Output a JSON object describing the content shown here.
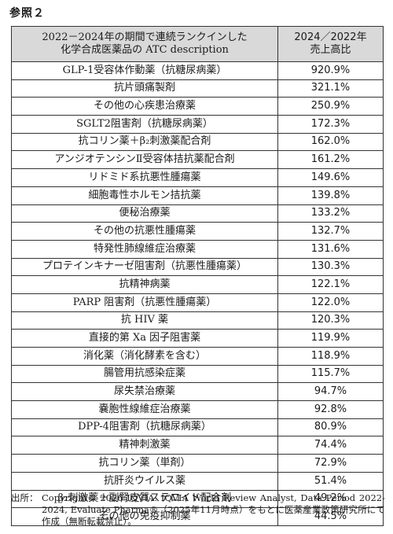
{
  "reference_label": "参照２",
  "table": {
    "header": {
      "description": "2022－2024年の期間で連続ランクインした\n化学合成医薬品の ATC description",
      "ratio": "2024／2022年\n売上高比"
    },
    "rows": [
      {
        "description": "GLP-1受容体作動薬（抗糖尿病薬）",
        "ratio": "920.9%"
      },
      {
        "description": "抗片頭痛製剤",
        "ratio": "321.1%"
      },
      {
        "description": "その他の心疾患治療薬",
        "ratio": "250.9%"
      },
      {
        "description": "SGLT2阻害剤（抗糖尿病薬）",
        "ratio": "172.3%"
      },
      {
        "description": "抗コリン薬＋β₂刺激薬配合剤",
        "ratio": "162.0%"
      },
      {
        "description": "アンジオテンシンⅡ受容体拮抗薬配合剤",
        "ratio": "161.2%"
      },
      {
        "description": "リドミド系抗悪性腫瘍薬",
        "ratio": "149.6%"
      },
      {
        "description": "細胞毒性ホルモン拮抗薬",
        "ratio": "139.8%"
      },
      {
        "description": "便秘治療薬",
        "ratio": "133.2%"
      },
      {
        "description": "その他の抗悪性腫瘍薬",
        "ratio": "132.7%"
      },
      {
        "description": "特発性肺線維症治療薬",
        "ratio": "131.6%"
      },
      {
        "description": "プロテインキナーゼ阻害剤（抗悪性腫瘍薬）",
        "ratio": "130.3%"
      },
      {
        "description": "抗精神病薬",
        "ratio": "122.1%"
      },
      {
        "description": "PARP 阻害剤（抗悪性腫瘍薬）",
        "ratio": "122.0%"
      },
      {
        "description": "抗 HIV 薬",
        "ratio": "120.3%"
      },
      {
        "description": "直接的第 Xa 因子阻害薬",
        "ratio": "119.9%"
      },
      {
        "description": "消化薬（消化酵素を含む）",
        "ratio": "118.9%"
      },
      {
        "description": "腸管用抗感染症薬",
        "ratio": "115.7%"
      },
      {
        "description": "尿失禁治療薬",
        "ratio": "94.7%"
      },
      {
        "description": "嚢胞性線維症治療薬",
        "ratio": "92.8%"
      },
      {
        "description": "DPP-4阻害剤（抗糖尿病薬）",
        "ratio": "80.9%"
      },
      {
        "description": "精神刺激薬",
        "ratio": "74.4%"
      },
      {
        "description": "抗コリン薬（単剤）",
        "ratio": "72.9%"
      },
      {
        "description": "抗肝炎ウイルス薬",
        "ratio": "51.4%"
      },
      {
        "description": "β₂刺激薬＋副腎皮質ステロイド配合剤",
        "ratio": "49.2%"
      },
      {
        "description": "その他の免疫抑制薬",
        "ratio": "44.5%"
      }
    ]
  },
  "source": {
    "label": "出所：",
    "text": "Copyright© 2026 IQVIA. IQVIA World Review Analyst, Data Period 2022-2024, Evaluate Pharma®（2025年11月時点）をもとに医薬産業政策研究所にて作成（無断転載禁止）。"
  }
}
